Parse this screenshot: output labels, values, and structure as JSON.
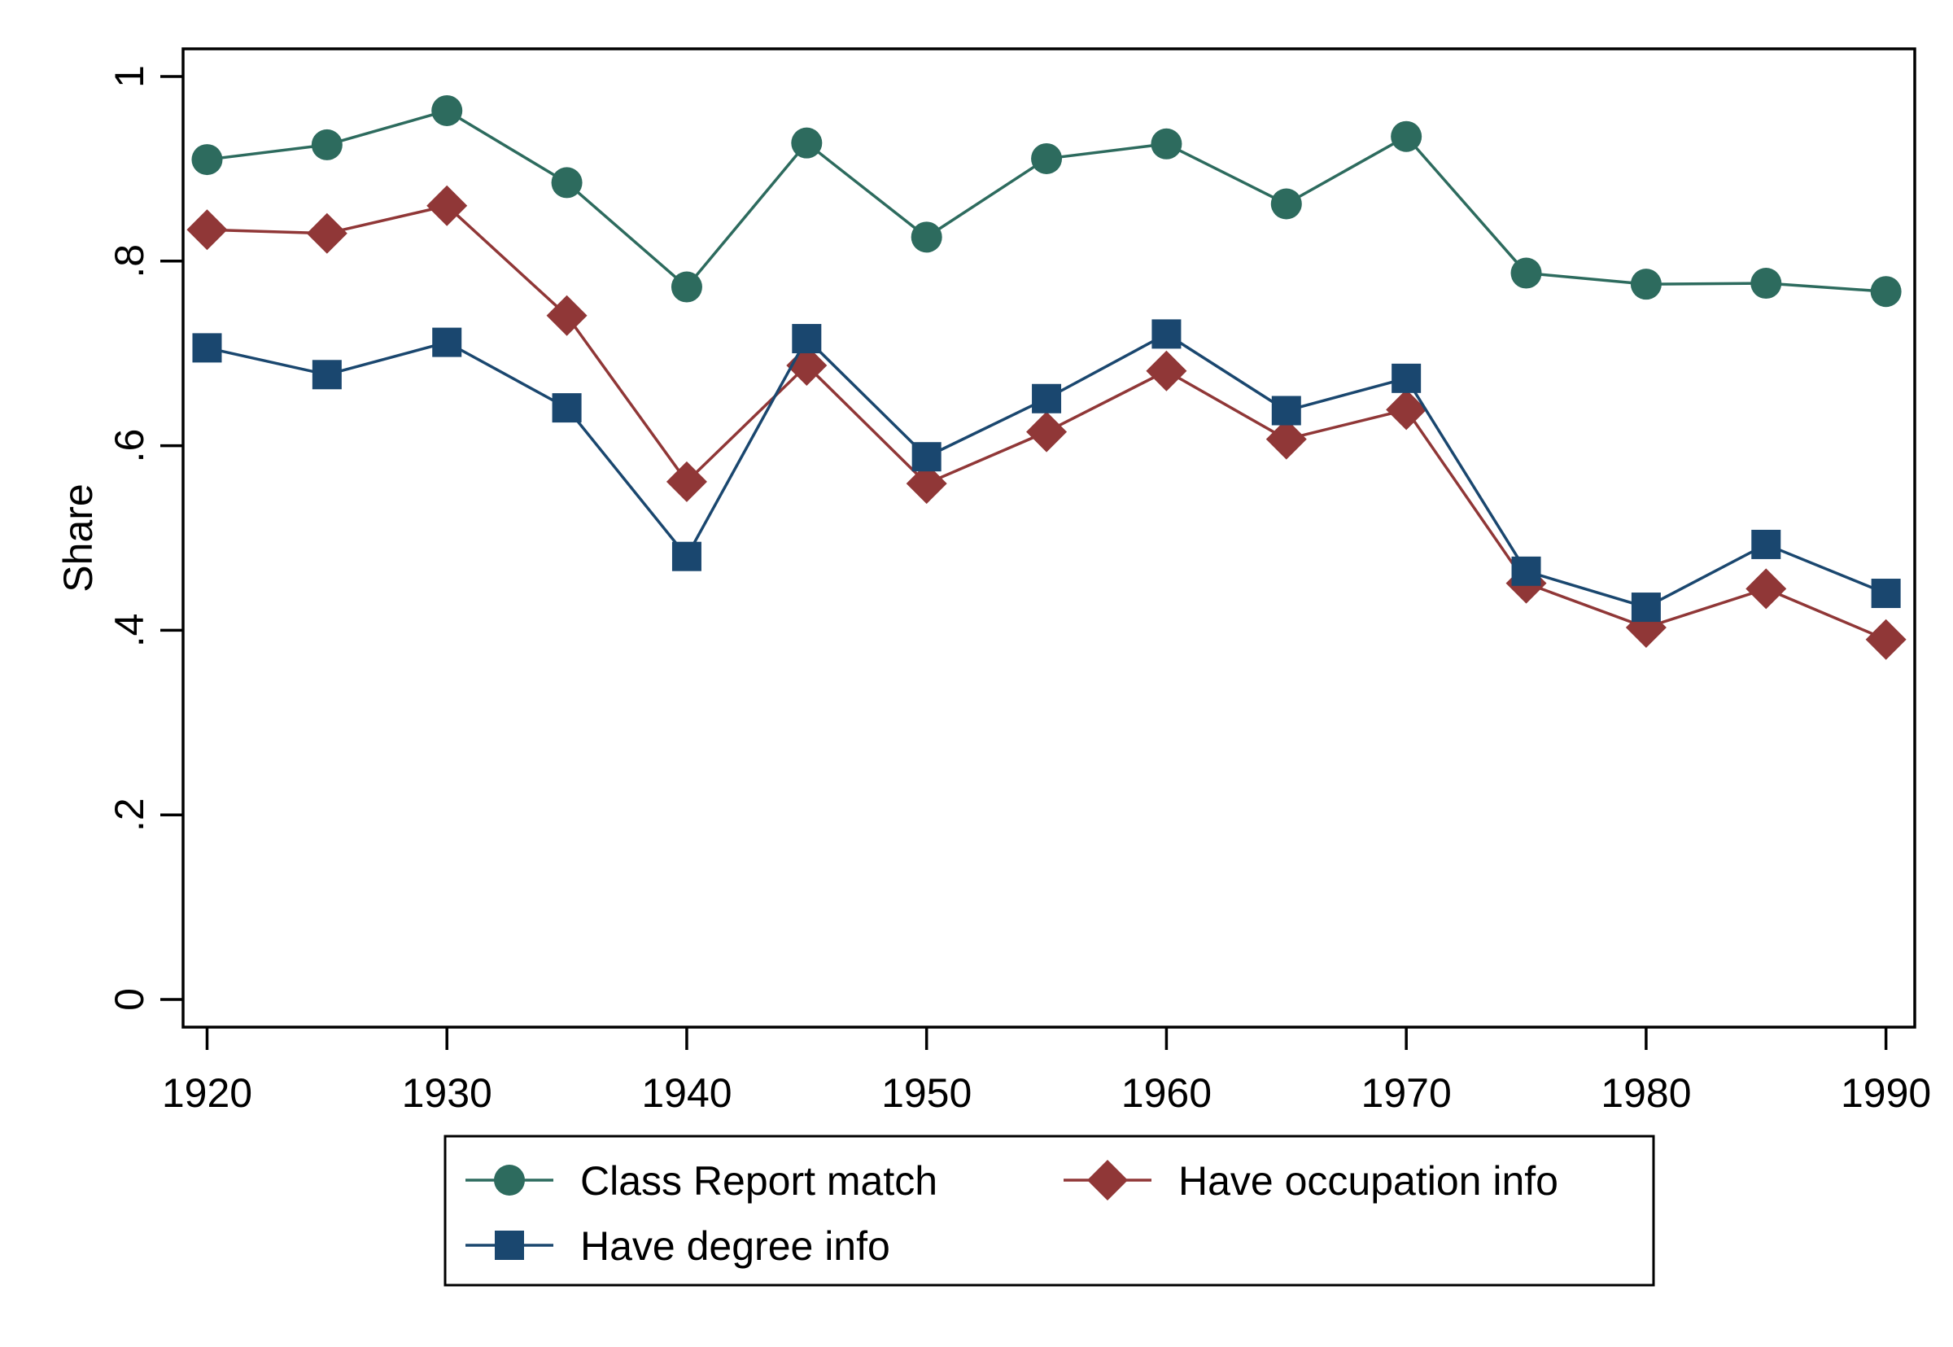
{
  "chart_data": {
    "type": "line",
    "title": "",
    "xlabel": "",
    "ylabel": "Share",
    "x": [
      1920,
      1925,
      1930,
      1935,
      1940,
      1945,
      1950,
      1955,
      1960,
      1965,
      1970,
      1975,
      1980,
      1985,
      1990
    ],
    "xlim": [
      1919,
      1991.2
    ],
    "ylim": [
      -0.03,
      1.03
    ],
    "xticks": [
      1920,
      1930,
      1940,
      1950,
      1960,
      1970,
      1980,
      1990
    ],
    "xtick_labels": [
      "1920",
      "1930",
      "1940",
      "1950",
      "1960",
      "1970",
      "1980",
      "1990"
    ],
    "yticks": [
      0,
      0.2,
      0.4,
      0.6,
      0.8,
      1
    ],
    "ytick_labels": [
      "0",
      ".2",
      ".4",
      ".6",
      ".8",
      "1"
    ],
    "grid": false,
    "legend_position": "bottom",
    "series": [
      {
        "name": "Class Report match",
        "marker": "circle",
        "color": "#2d6b5e",
        "values": [
          0.91,
          0.926,
          0.963,
          0.885,
          0.772,
          0.928,
          0.826,
          0.911,
          0.927,
          0.862,
          0.935,
          0.787,
          0.775,
          0.776,
          0.767
        ]
      },
      {
        "name": "Have occupation info",
        "marker": "diamond",
        "color": "#903737",
        "values": [
          0.834,
          0.83,
          0.86,
          0.741,
          0.561,
          0.687,
          0.559,
          0.615,
          0.681,
          0.607,
          0.639,
          0.451,
          0.403,
          0.445,
          0.39
        ]
      },
      {
        "name": "Have degree info",
        "marker": "square",
        "color": "#1a476f",
        "values": [
          0.706,
          0.677,
          0.712,
          0.641,
          0.48,
          0.716,
          0.588,
          0.651,
          0.721,
          0.638,
          0.673,
          0.464,
          0.425,
          0.493,
          0.44
        ]
      }
    ]
  }
}
